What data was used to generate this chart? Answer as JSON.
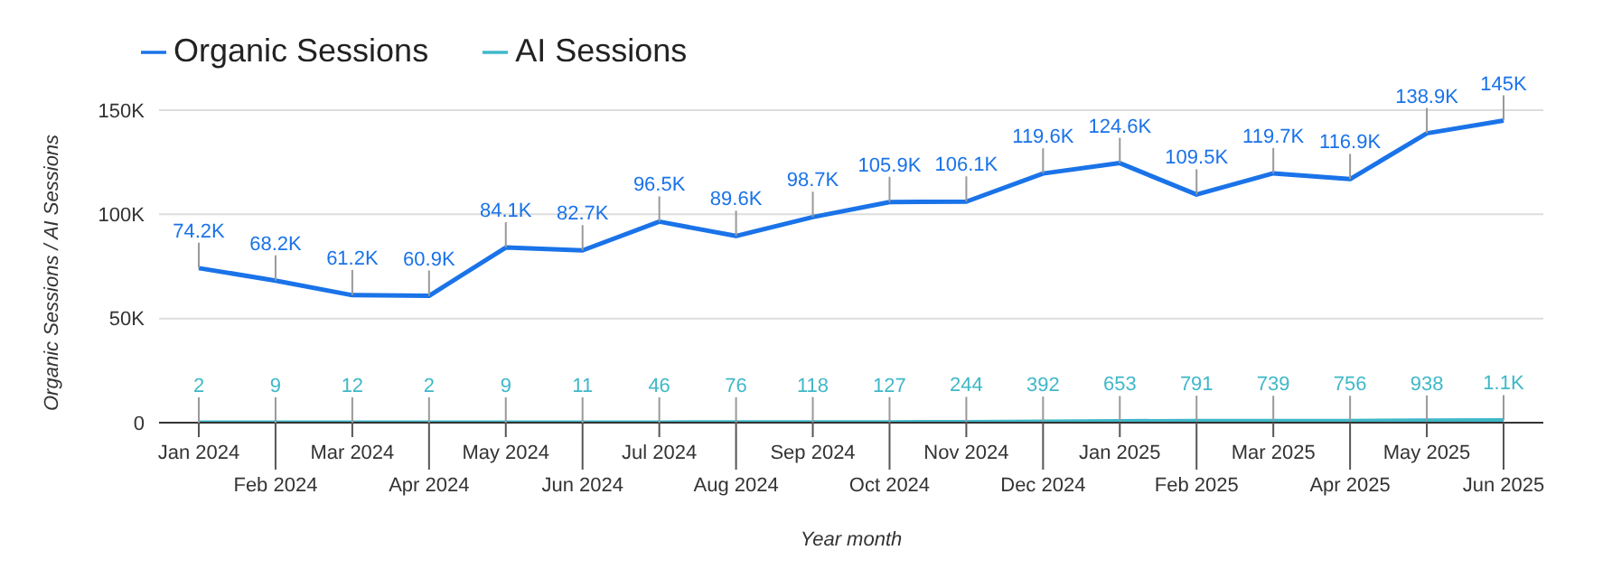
{
  "chart_data": {
    "type": "line",
    "xlabel": "Year month",
    "ylabel": "Organic Sessions / AI Sessions",
    "categories": [
      "Jan 2024",
      "Feb 2024",
      "Mar 2024",
      "Apr 2024",
      "May 2024",
      "Jun 2024",
      "Jul 2024",
      "Aug 2024",
      "Sep 2024",
      "Oct 2024",
      "Nov 2024",
      "Dec 2024",
      "Jan 2025",
      "Feb 2025",
      "Mar 2025",
      "Apr 2025",
      "May 2025",
      "Jun 2025"
    ],
    "series": [
      {
        "name": "Organic Sessions",
        "color": "#1a73e8",
        "values": [
          74200,
          68200,
          61200,
          60900,
          84100,
          82700,
          96500,
          89600,
          98700,
          105900,
          106100,
          119600,
          124600,
          109500,
          119700,
          116900,
          138900,
          145000
        ],
        "value_labels": [
          "74.2K",
          "68.2K",
          "61.2K",
          "60.9K",
          "84.1K",
          "82.7K",
          "96.5K",
          "89.6K",
          "98.7K",
          "105.9K",
          "106.1K",
          "119.6K",
          "124.6K",
          "109.5K",
          "119.7K",
          "116.9K",
          "138.9K",
          "145K"
        ]
      },
      {
        "name": "AI Sessions",
        "color": "#3fb8c8",
        "values": [
          2,
          9,
          12,
          2,
          9,
          11,
          46,
          76,
          118,
          127,
          244,
          392,
          653,
          791,
          739,
          756,
          938,
          1100
        ],
        "value_labels": [
          "2",
          "9",
          "12",
          "2",
          "9",
          "11",
          "46",
          "76",
          "118",
          "127",
          "244",
          "392",
          "653",
          "791",
          "739",
          "756",
          "938",
          "1.1K"
        ]
      }
    ],
    "ylim": [
      0,
      150000
    ],
    "yticks": [
      {
        "value": 0,
        "label": "0"
      },
      {
        "value": 50000,
        "label": "50K"
      },
      {
        "value": 100000,
        "label": "100K"
      },
      {
        "value": 150000,
        "label": "150K"
      }
    ],
    "grid": "y",
    "legend": "top left",
    "marker": "none",
    "line_style": "solid"
  }
}
